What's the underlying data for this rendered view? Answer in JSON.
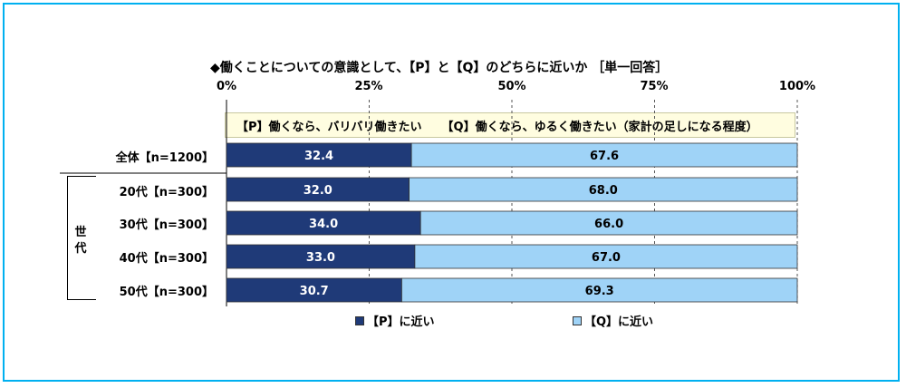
{
  "title": "◆働くことについての意識として、【P】と【Q】のどちらに近いか ［単一回答］",
  "legend_box": {
    "p_label": "【P】働くなら、バリバリ働きたい",
    "q_label": "【Q】働くなら、ゆるく働きたい（家計の足しになる程度）"
  },
  "group_label": "世代",
  "colors": {
    "p": "#1f3a78",
    "q": "#9fd3f7",
    "text_on_p": "#ffffff",
    "text_on_q": "#000000",
    "frame": "#00b0f0"
  },
  "bottom_legend": {
    "p": "【P】に近い",
    "q": "【Q】に近い"
  },
  "chart_data": {
    "type": "bar",
    "orientation": "horizontal",
    "stacked": true,
    "title": "◆働くことについての意識として、【P】と【Q】のどちらに近いか ［単一回答］",
    "xlim": [
      0,
      100
    ],
    "x_ticks": [
      "0%",
      "25%",
      "50%",
      "75%",
      "100%"
    ],
    "categories": [
      "全体【n=1200】",
      "20代【n=300】",
      "30代【n=300】",
      "40代【n=300】",
      "50代【n=300】"
    ],
    "series": [
      {
        "name": "【P】に近い",
        "values": [
          32.4,
          32.0,
          34.0,
          33.0,
          30.7
        ]
      },
      {
        "name": "【Q】に近い",
        "values": [
          67.6,
          68.0,
          66.0,
          67.0,
          69.3
        ]
      }
    ],
    "value_labels": [
      [
        "32.4",
        "32.0",
        "34.0",
        "33.0",
        "30.7"
      ],
      [
        "67.6",
        "68.0",
        "66.0",
        "67.0",
        "69.3"
      ]
    ],
    "grid": true,
    "legend_position": "bottom"
  }
}
